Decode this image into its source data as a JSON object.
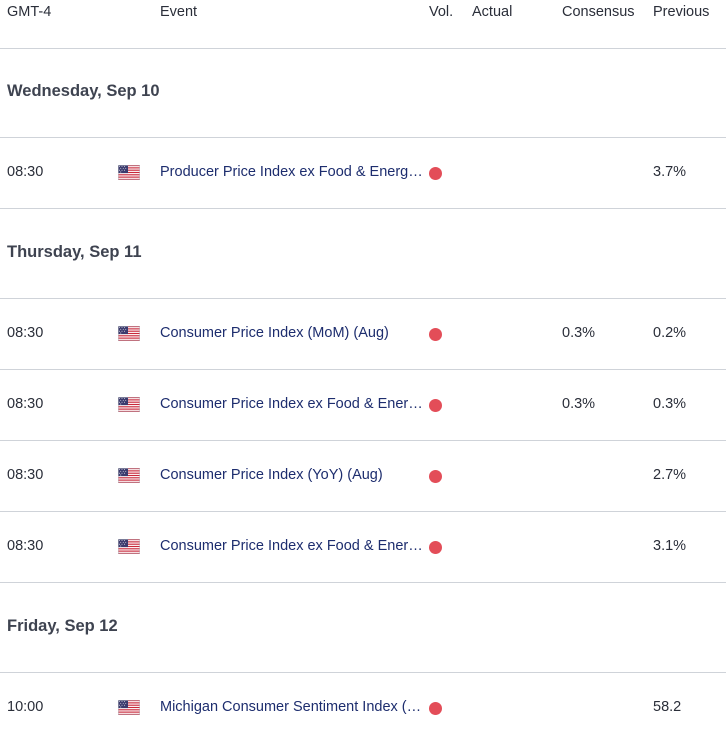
{
  "header": {
    "timezone": "GMT-4",
    "event": "Event",
    "vol": "Vol.",
    "actual": "Actual",
    "consensus": "Consensus",
    "previous": "Previous"
  },
  "days": [
    {
      "label": "Wednesday, Sep 10",
      "events": [
        {
          "time": "08:30",
          "country_icon": "us-flag-icon",
          "name": "Producer Price Index ex Food & Energy (YoY) (Aug)",
          "volatility": "high",
          "actual": "",
          "consensus": "",
          "previous": "3.7%"
        }
      ]
    },
    {
      "label": "Thursday, Sep 11",
      "events": [
        {
          "time": "08:30",
          "country_icon": "us-flag-icon",
          "name": "Consumer Price Index (MoM) (Aug)",
          "volatility": "high",
          "actual": "",
          "consensus": "0.3%",
          "previous": "0.2%"
        },
        {
          "time": "08:30",
          "country_icon": "us-flag-icon",
          "name": "Consumer Price Index ex Food & Energy (MoM) (Aug)",
          "volatility": "high",
          "actual": "",
          "consensus": "0.3%",
          "previous": "0.3%"
        },
        {
          "time": "08:30",
          "country_icon": "us-flag-icon",
          "name": "Consumer Price Index (YoY) (Aug)",
          "volatility": "high",
          "actual": "",
          "consensus": "",
          "previous": "2.7%"
        },
        {
          "time": "08:30",
          "country_icon": "us-flag-icon",
          "name": "Consumer Price Index ex Food & Energy (YoY) (Aug)",
          "volatility": "high",
          "actual": "",
          "consensus": "",
          "previous": "3.1%"
        }
      ]
    },
    {
      "label": "Friday, Sep 12",
      "events": [
        {
          "time": "10:00",
          "country_icon": "us-flag-icon",
          "name": "Michigan Consumer Sentiment Index (Sep) PREL",
          "volatility": "high",
          "actual": "",
          "consensus": "",
          "previous": "58.2"
        }
      ]
    }
  ],
  "colors": {
    "volatility_high": "#e34d58",
    "event_text": "#1d2d6e",
    "divider": "#cfd3d9"
  }
}
